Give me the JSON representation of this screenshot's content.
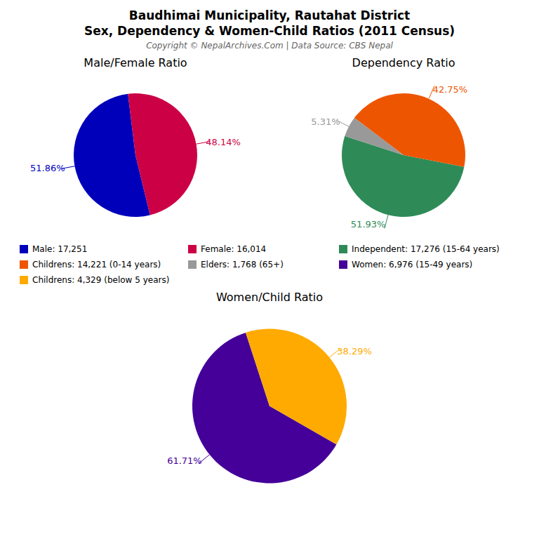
{
  "title": "Baudhimai Municipality, Rautahat District",
  "subtitle": "Sex, Dependency & Women-Child Ratios (2011 Census)",
  "annotations": [
    "Copyright © NepalArchives.Com | Data Source: CBS Nepal"
  ],
  "chart_data": [
    {
      "type": "pie",
      "title": "Male/Female Ratio",
      "categories": [
        "Male: 17,251",
        "Female: 16,014"
      ],
      "values": [
        51.86,
        48.14
      ],
      "value_labels": [
        "51.86%",
        "48.14%"
      ],
      "colors": [
        "#0000BB",
        "#CC0044"
      ],
      "data_labels": true
    },
    {
      "type": "pie",
      "title": "Dependency Ratio",
      "categories": [
        "Independent: 17,276 (15-64 years)",
        "Childrens: 14,221 (0-14 years)",
        "Elders: 1,768 (65+)"
      ],
      "values": [
        51.93,
        42.75,
        5.31
      ],
      "value_labels": [
        "51.93%",
        "42.75%",
        "5.31%"
      ],
      "colors": [
        "#2E8B57",
        "#EE5500",
        "#999999"
      ],
      "data_labels": true
    },
    {
      "type": "pie",
      "title": "Women/Child Ratio",
      "categories": [
        "Women: 6,976 (15-49 years)",
        "Childrens: 4,329 (below 5 years)"
      ],
      "values": [
        61.71,
        38.29
      ],
      "value_labels": [
        "61.71%",
        "38.29%"
      ],
      "colors": [
        "#440099",
        "#FFAA00"
      ],
      "data_labels": true
    }
  ]
}
